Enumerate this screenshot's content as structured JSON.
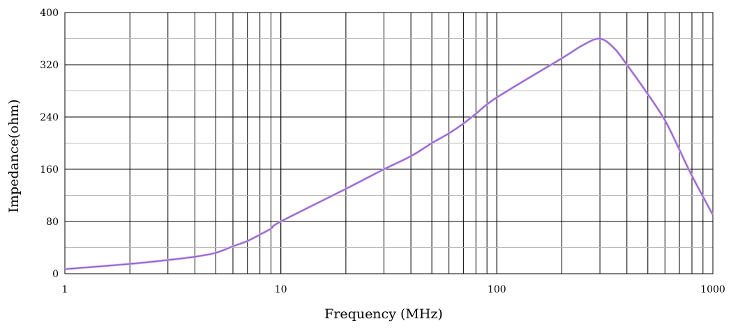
{
  "chart_data": {
    "type": "line",
    "title": "",
    "xlabel": "Frequency (MHz)",
    "ylabel": "Impedance(ohm)",
    "x_scale": "log",
    "xlim": [
      1,
      1000
    ],
    "ylim": [
      0,
      400
    ],
    "x_ticks": [
      1,
      10,
      100,
      1000
    ],
    "x_tick_labels": [
      "1",
      "10",
      "100",
      "1000"
    ],
    "y_ticks": [
      0,
      80,
      160,
      240,
      320,
      400
    ],
    "y_tick_labels": [
      "0",
      "80",
      "160",
      "240",
      "320",
      "400"
    ],
    "grid": true,
    "legend": "none",
    "series": [
      {
        "color": "#8e5bc8",
        "x": [
          1,
          2,
          3,
          4,
          5,
          6,
          7,
          8,
          9,
          10,
          20,
          30,
          40,
          50,
          60,
          70,
          80,
          100,
          200,
          250,
          300,
          350,
          400,
          500,
          600,
          700,
          800,
          1000
        ],
        "y": [
          7,
          15,
          21,
          26,
          32,
          42,
          50,
          60,
          69,
          80,
          130,
          160,
          180,
          200,
          215,
          230,
          245,
          270,
          330,
          350,
          360,
          345,
          320,
          275,
          235,
          190,
          150,
          90
        ]
      }
    ]
  }
}
